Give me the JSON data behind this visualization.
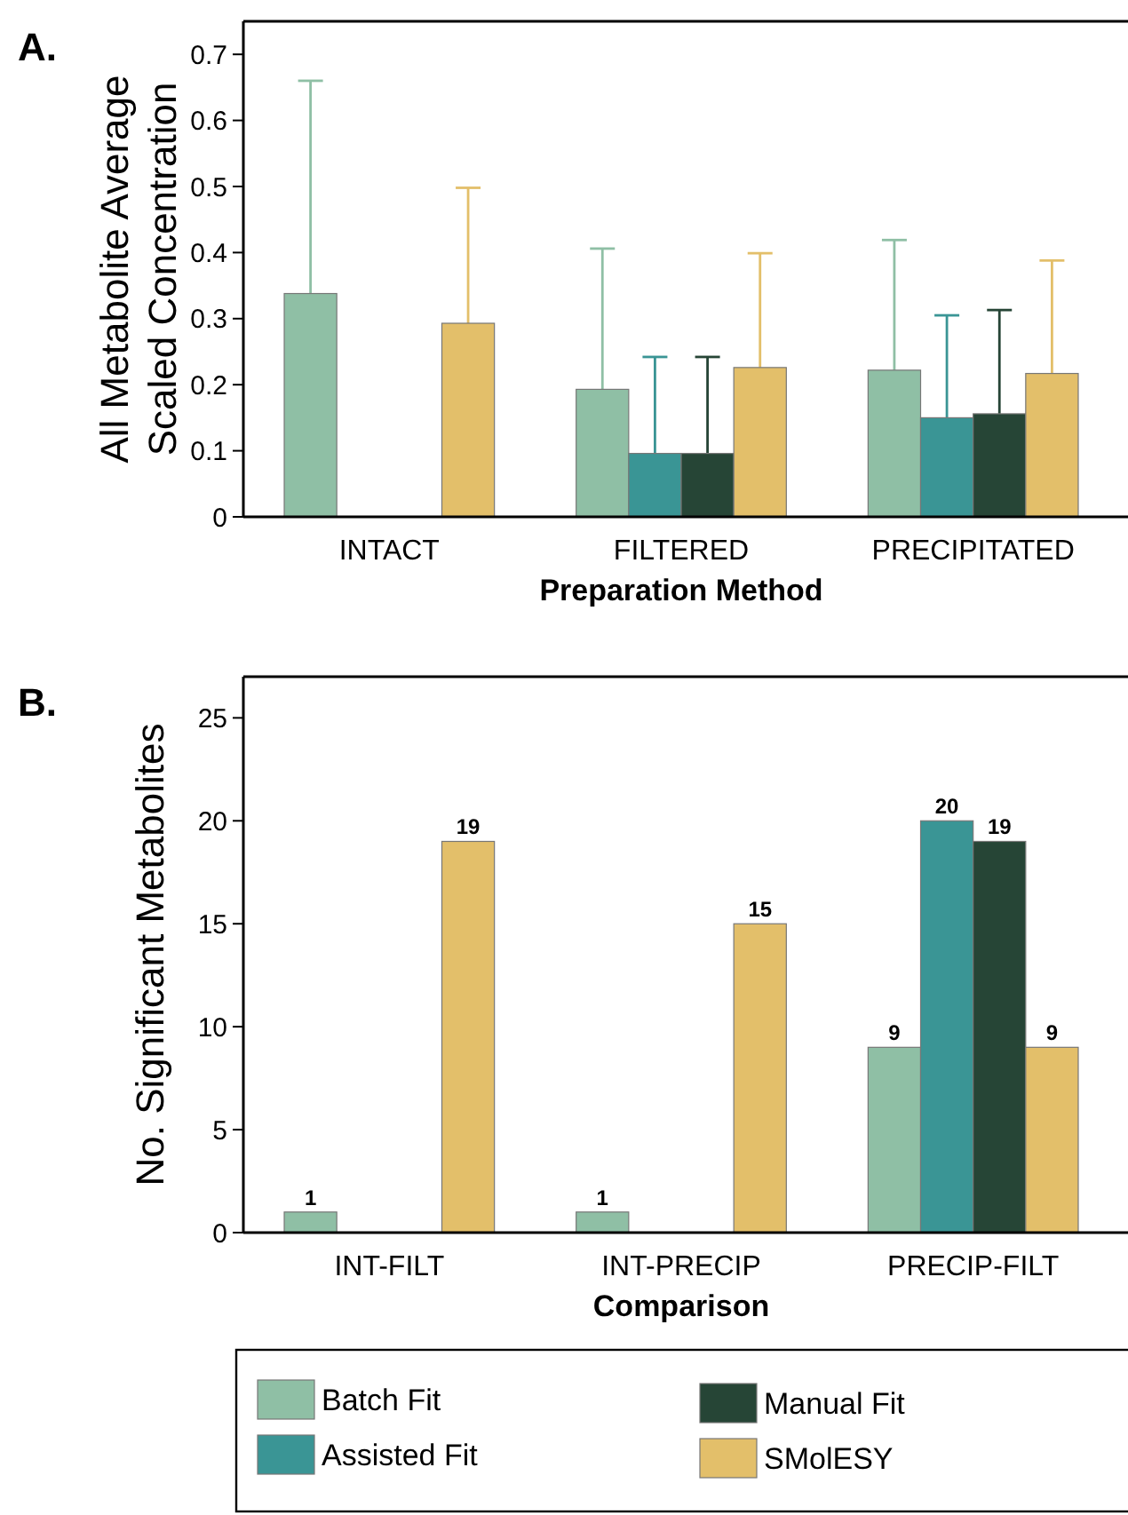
{
  "chart_data": [
    {
      "type": "bar",
      "annotations": [
        "A."
      ],
      "xlabel": "Preparation Method",
      "ylabel": "All Metabolite Average\nScaled Concentration",
      "categories": [
        "INTACT",
        "FILTERED",
        "PRECIPITATED"
      ],
      "ylim": [
        0,
        0.75
      ],
      "yticks": [
        0,
        0.1,
        0.2,
        0.3,
        0.4,
        0.5,
        0.6,
        0.7
      ],
      "series": [
        {
          "color": "#8fbfa5",
          "values": [
            0.338,
            0.193,
            0.222
          ],
          "errors": [
            [
              0.338,
              0.66
            ],
            [
              0.193,
              0.406
            ],
            [
              0.222,
              0.419
            ]
          ]
        },
        {
          "color": "#3a9595",
          "values": [
            null,
            0.096,
            0.15
          ],
          "errors": [
            null,
            [
              0.096,
              0.242
            ],
            [
              0.15,
              0.305
            ]
          ]
        },
        {
          "color": "#264536",
          "values": [
            null,
            0.096,
            0.156
          ],
          "errors": [
            null,
            [
              0.096,
              0.242
            ],
            [
              0.156,
              0.313
            ]
          ]
        },
        {
          "color": "#e3bf6a",
          "values": [
            0.293,
            0.226,
            0.217
          ],
          "errors": [
            [
              0.293,
              0.498
            ],
            [
              0.226,
              0.399
            ],
            [
              0.217,
              0.388
            ]
          ]
        }
      ]
    },
    {
      "type": "bar",
      "annotations": [
        "B."
      ],
      "xlabel": "Comparison",
      "ylabel": "No. Significant Metabolites",
      "categories": [
        "INT-FILT",
        "INT-PRECIP",
        "PRECIP-FILT"
      ],
      "ylim": [
        0,
        27
      ],
      "yticks": [
        0,
        5,
        10,
        15,
        20,
        25
      ],
      "data_labels": true,
      "legend": "bottom",
      "series": [
        {
          "name": "Batch Fit",
          "color": "#8fbfa5",
          "values": [
            1,
            1,
            9
          ]
        },
        {
          "name": "Assisted Fit",
          "color": "#3a9595",
          "values": [
            null,
            null,
            20
          ]
        },
        {
          "name": "Manual Fit",
          "color": "#264536",
          "values": [
            null,
            null,
            19
          ]
        },
        {
          "name": "SMolESY",
          "color": "#e3bf6a",
          "values": [
            19,
            15,
            9
          ]
        }
      ]
    }
  ]
}
